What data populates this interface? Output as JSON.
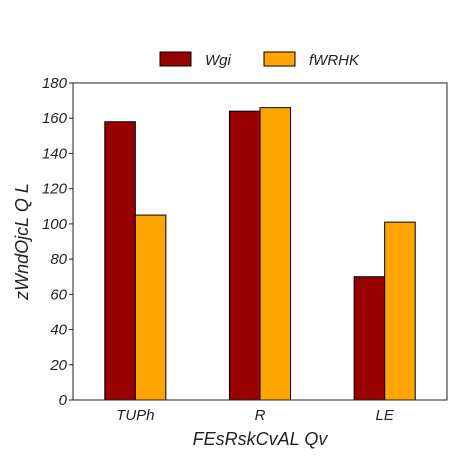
{
  "chart_data": {
    "type": "bar",
    "title": "",
    "xlabel": "FEsRskCvAL  Qv",
    "ylabel": "zWndOjcL  Q L",
    "categories": [
      "TUPh",
      "R",
      "LE"
    ],
    "series": [
      {
        "name": "Wgi",
        "color": "#990000",
        "values": [
          158,
          164,
          70
        ]
      },
      {
        "name": "fWRHK",
        "color": "#ffa500",
        "values": [
          105,
          166,
          101
        ]
      }
    ],
    "ylim": [
      0,
      180
    ],
    "yticks": [
      0,
      20,
      40,
      60,
      80,
      100,
      120,
      140,
      160,
      180
    ],
    "grid": false,
    "legend_position": "top-center"
  }
}
